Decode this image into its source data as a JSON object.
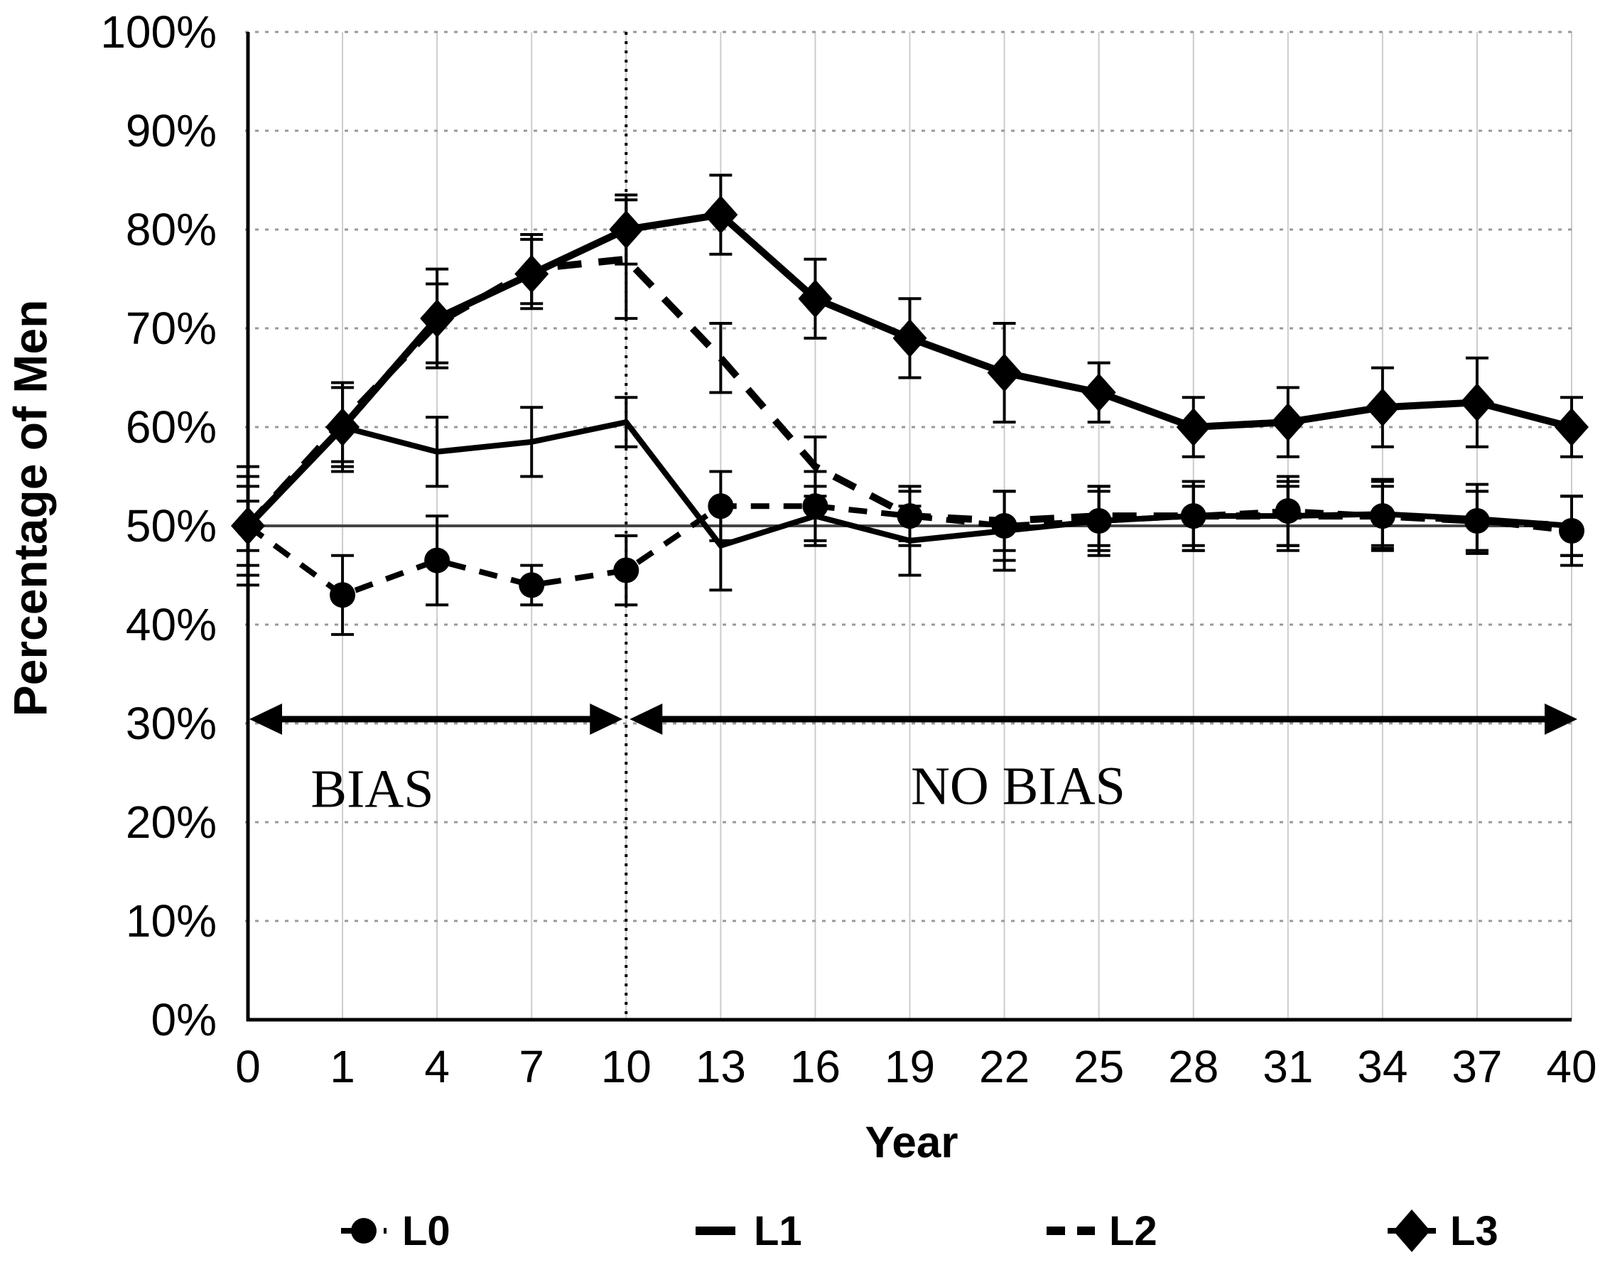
{
  "figure": {
    "background": "#ffffff"
  },
  "colors": {
    "series": "#000000",
    "grid_horizontal_dotted": "#999999",
    "grid_vertical": "#cccccc",
    "fifty_percent_line": "#444444",
    "axis": "#000000",
    "background": "#ffffff"
  },
  "y_axis": {
    "label": "Percentage of Men",
    "ticks": [
      "100%",
      "90%",
      "80%",
      "70%",
      "60%",
      "50%",
      "40%",
      "30%",
      "20%",
      "10%",
      "0%"
    ]
  },
  "x_axis": {
    "label": "Year",
    "ticks": [
      "0",
      "1",
      "4",
      "7",
      "10",
      "13",
      "16",
      "19",
      "22",
      "25",
      "28",
      "31",
      "34",
      "37",
      "40"
    ]
  },
  "annotations": {
    "bias_label": "BIAS",
    "no_bias_label": "NO BIAS",
    "boundary_year": 10,
    "arrow_y_percent": 30.3
  },
  "legend": [
    {
      "id": "L0",
      "label": "L0",
      "icon": "circle-on-dash"
    },
    {
      "id": "L1",
      "label": "L1",
      "icon": "solid-line"
    },
    {
      "id": "L2",
      "label": "L2",
      "icon": "dashed-line"
    },
    {
      "id": "L3",
      "label": "L3",
      "icon": "diamond-on-line"
    }
  ],
  "chart_data": {
    "type": "line",
    "title": "",
    "xlabel": "Year",
    "ylabel": "Percentage of Men",
    "x": [
      0,
      1,
      4,
      7,
      10,
      13,
      16,
      19,
      22,
      25,
      28,
      31,
      34,
      37,
      40
    ],
    "ylim": [
      0,
      100
    ],
    "y_tick_step": 10,
    "grid": true,
    "legend_position": "bottom",
    "reference_line_percent": 50,
    "series": [
      {
        "name": "L0",
        "line": "dashed",
        "marker": "circle",
        "values": [
          50,
          43,
          46.5,
          44,
          45.5,
          52,
          52,
          51,
          50,
          50.5,
          51,
          51.5,
          51,
          50.5,
          49.5
        ],
        "errors": [
          2.5,
          4,
          4.5,
          2,
          3.5,
          3.5,
          3.5,
          3,
          3.5,
          3,
          3.5,
          3.5,
          3.5,
          3,
          3.5
        ]
      },
      {
        "name": "L1",
        "line": "solid",
        "marker": "none",
        "values": [
          50,
          60,
          57.5,
          58.5,
          60.5,
          48,
          51,
          48.5,
          49.5,
          50.5,
          51,
          51,
          51.2,
          50.7,
          50
        ],
        "errors": [
          6,
          4.5,
          3.5,
          3.5,
          2.5,
          4.5,
          3,
          3.5,
          4,
          3.5,
          3.5,
          3.5,
          3.5,
          3.5,
          3
        ]
      },
      {
        "name": "L2",
        "line": "dashed",
        "marker": "none",
        "values": [
          50,
          60.5,
          70.5,
          76,
          77,
          67,
          56,
          51,
          50.5,
          51,
          51,
          51,
          51,
          50.5,
          50
        ],
        "errors": [
          4,
          4,
          4,
          3.5,
          6,
          3.5,
          3,
          2.5,
          3,
          3,
          3,
          3,
          3,
          3,
          3
        ]
      },
      {
        "name": "L3",
        "line": "solid-thick",
        "marker": "diamond",
        "values": [
          50,
          60,
          71,
          75.5,
          80,
          81.5,
          73,
          69,
          65.5,
          63.5,
          60,
          60.5,
          62,
          62.5,
          60
        ],
        "errors": [
          5,
          4,
          5,
          3.5,
          3.5,
          4,
          4,
          4,
          5,
          3,
          3,
          3.5,
          4,
          4.5,
          3
        ]
      }
    ]
  }
}
